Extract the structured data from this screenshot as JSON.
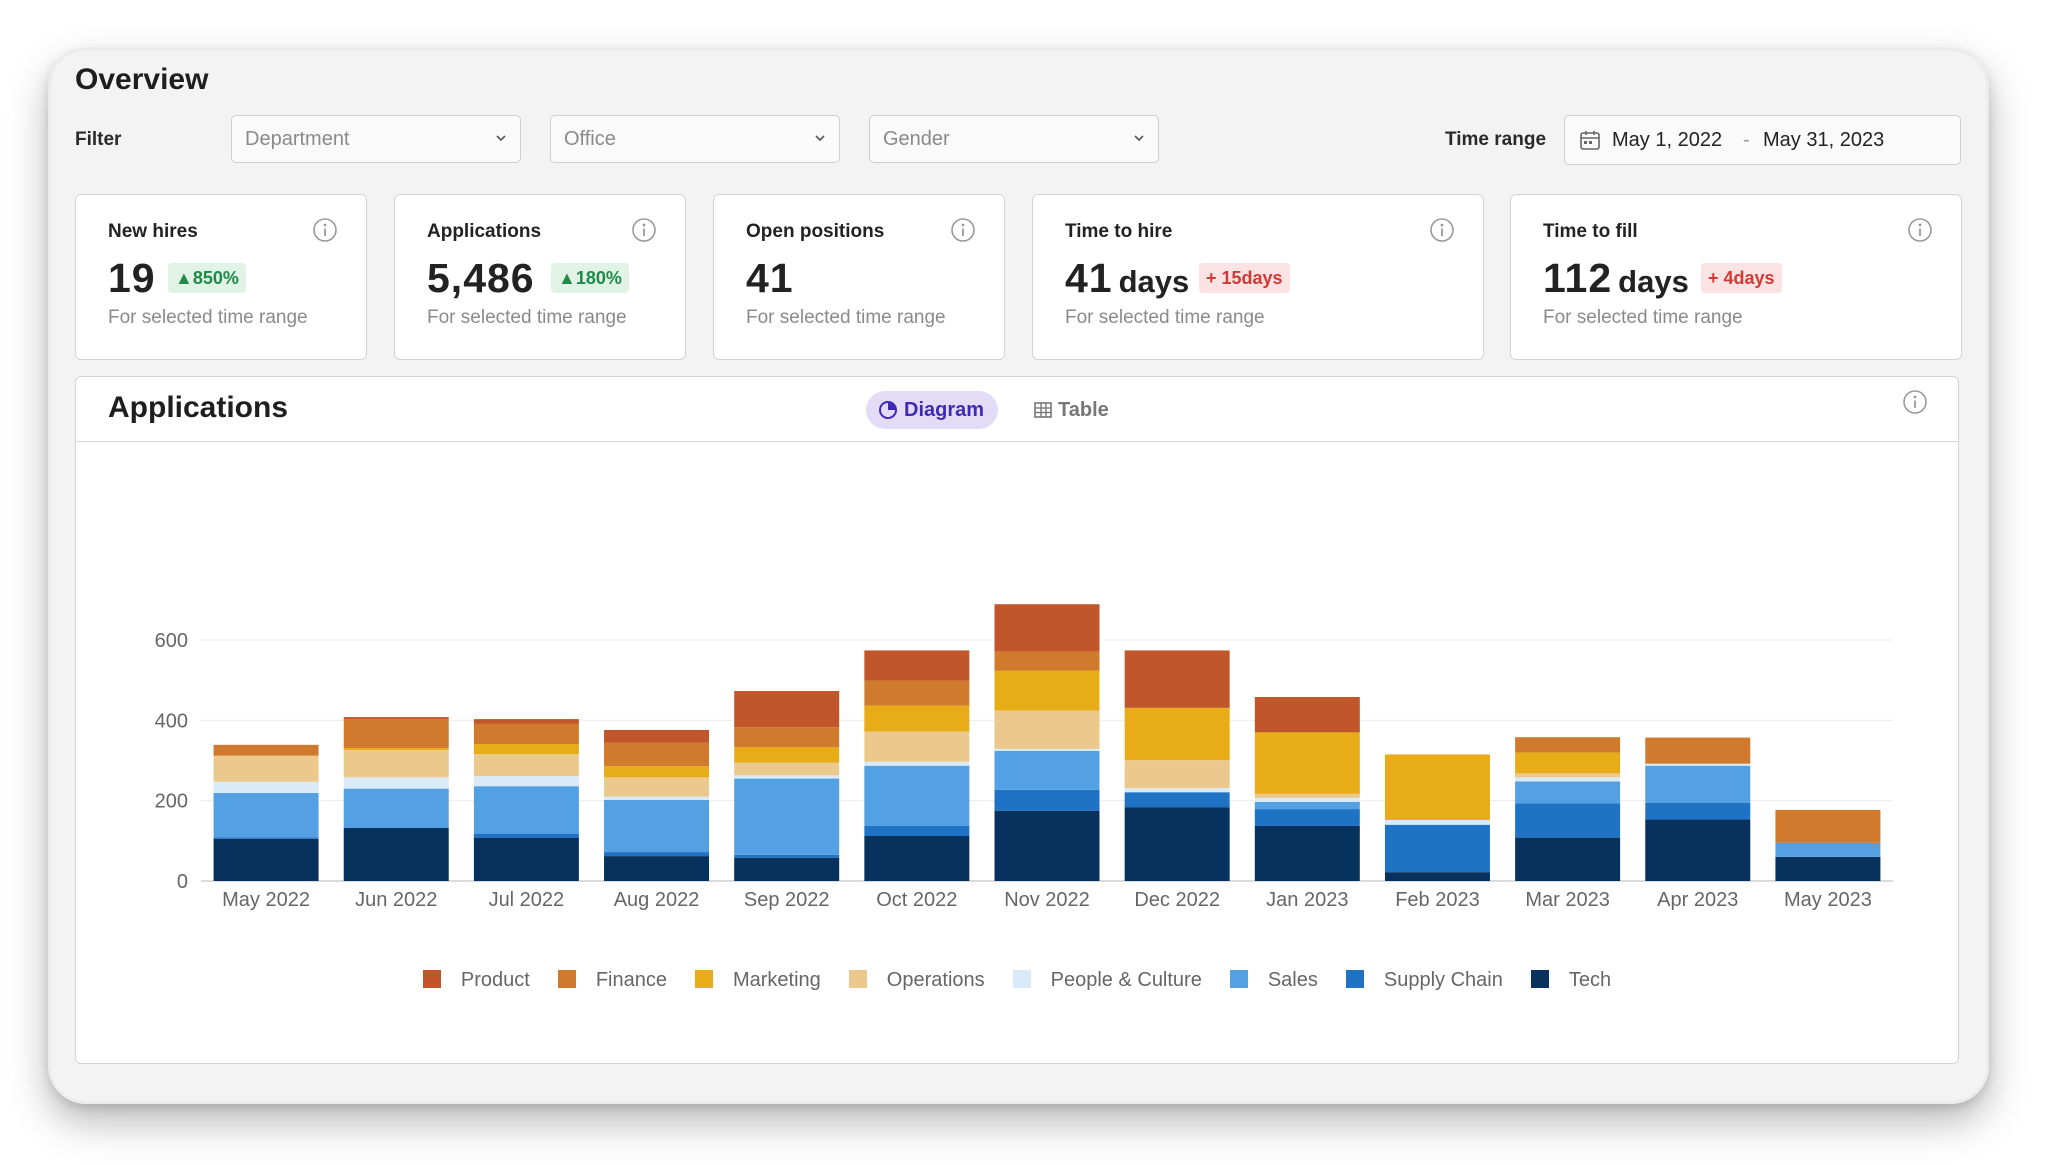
{
  "header": {
    "title": "Overview"
  },
  "filters": {
    "label": "Filter",
    "department_placeholder": "Department",
    "office_placeholder": "Office",
    "gender_placeholder": "Gender",
    "time_range_label": "Time range",
    "date_start": "May 1, 2022",
    "date_separator": "-",
    "date_end": "May 31, 2023"
  },
  "kpis": [
    {
      "label": "New hires",
      "value": "19",
      "unit": "",
      "badge": "850%",
      "trend": "up",
      "sub": "For selected time range"
    },
    {
      "label": "Applications",
      "value": "5,486",
      "unit": "",
      "badge": "180%",
      "trend": "up",
      "sub": "For selected time range"
    },
    {
      "label": "Open positions",
      "value": "41",
      "unit": "",
      "badge": "",
      "trend": "none",
      "sub": "For selected time range"
    },
    {
      "label": "Time to hire",
      "value": "41",
      "unit": "days",
      "badge": "15days",
      "trend": "down",
      "sub": "For selected time range"
    },
    {
      "label": "Time to fill",
      "value": "112",
      "unit": "days",
      "badge": "4days",
      "trend": "down",
      "sub": "For selected time range"
    }
  ],
  "panel": {
    "title": "Applications",
    "tab_diagram": "Diagram",
    "tab_table": "Table",
    "active_tab": "Diagram"
  },
  "colors": {
    "accent": "#3f2bb3",
    "up": "#1f8a4a",
    "down": "#d23a36"
  },
  "chart_data": {
    "type": "bar",
    "stacked": true,
    "categories": [
      "May 2022",
      "Jun 2022",
      "Jul 2022",
      "Aug 2022",
      "Sep 2022",
      "Oct 2022",
      "Nov 2022",
      "Dec 2022",
      "Jan 2023",
      "Feb 2023",
      "Mar 2023",
      "Apr 2023",
      "May 2023"
    ],
    "series": [
      {
        "name": "Tech",
        "color": "#07325e",
        "values": [
          105,
          132,
          108,
          62,
          58,
          112,
          175,
          183,
          137,
          22,
          108,
          153,
          60
        ]
      },
      {
        "name": "Supply Chain",
        "color": "#1f73c4",
        "values": [
          4,
          0,
          10,
          10,
          7,
          25,
          52,
          38,
          42,
          118,
          85,
          42,
          0
        ]
      },
      {
        "name": "Sales",
        "color": "#53a0e3",
        "values": [
          110,
          98,
          118,
          130,
          190,
          150,
          97,
          0,
          18,
          0,
          55,
          92,
          35
        ]
      },
      {
        "name": "People & Culture",
        "color": "#d9eaf9",
        "values": [
          28,
          28,
          25,
          8,
          8,
          10,
          5,
          10,
          10,
          12,
          10,
          5,
          0
        ]
      },
      {
        "name": "Operations",
        "color": "#ebc98c",
        "values": [
          65,
          68,
          55,
          48,
          32,
          75,
          95,
          70,
          10,
          0,
          10,
          0,
          0
        ]
      },
      {
        "name": "Marketing",
        "color": "#e8ac19",
        "values": [
          0,
          5,
          25,
          28,
          38,
          65,
          100,
          130,
          153,
          163,
          52,
          0,
          0
        ]
      },
      {
        "name": "Finance",
        "color": "#d07a2e",
        "values": [
          27,
          72,
          50,
          58,
          50,
          62,
          47,
          0,
          0,
          0,
          38,
          65,
          82
        ]
      },
      {
        "name": "Product",
        "color": "#c1562a",
        "values": [
          0,
          5,
          12,
          32,
          90,
          75,
          118,
          143,
          88,
          0,
          0,
          0,
          0
        ]
      }
    ],
    "legend_order": [
      "Product",
      "Finance",
      "Marketing",
      "Operations",
      "People & Culture",
      "Sales",
      "Supply Chain",
      "Tech"
    ],
    "yticks": [
      0,
      200,
      400,
      600
    ],
    "ylim": [
      0,
      700
    ],
    "grid": true,
    "legend_position": "bottom",
    "title": "",
    "xlabel": "",
    "ylabel": ""
  }
}
